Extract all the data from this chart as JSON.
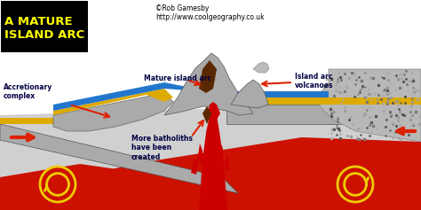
{
  "title_text": "A MATURE\nISLAND ARC",
  "title_bg": "#000000",
  "title_color": "#ffff00",
  "copyright_text": "©Rob Gamesby\nhttp://www.coolgeography.co.uk",
  "bg_color": "#ffffff",
  "fig_width": 4.74,
  "fig_height": 2.37,
  "labels": {
    "accretionary": "Accretionary\ncomplex",
    "mature_arc": "Mature island arc",
    "island_arc_volc": "Island arc\nvolcanoes",
    "batholiths": "More batholiths\nhave been\ncreated"
  },
  "colors": {
    "ocean_blue": "#2277cc",
    "mantle_red": "#cc1100",
    "plate_gray": "#aaaaaa",
    "plate_dark": "#888888",
    "plate_light": "#cccccc",
    "sand_yellow": "#ddaa00",
    "granite_gray": "#999999",
    "magma_red": "#cc0000",
    "batholith_brown": "#5a2800",
    "arrow_red": "#dd2200",
    "convection_yellow": "#eecc00",
    "label_color": "#000044",
    "white": "#ffffff"
  }
}
